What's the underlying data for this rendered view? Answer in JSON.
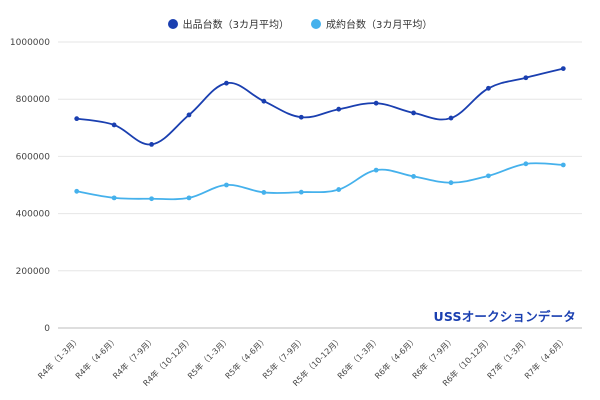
{
  "chart_data": {
    "type": "line",
    "categories": [
      "R4年（1-3月）",
      "R4年（4-6月）",
      "R4年（7-9月）",
      "R4年（10-12月）",
      "R5年（1-3月）",
      "R5年（4-6月）",
      "R5年（7-9月）",
      "R5年（10-12月）",
      "R6年（1-3月）",
      "R6年（4-6月）",
      "R6年（7-9月）",
      "R6年（10-12月）",
      "R7年（1-3月）",
      "R7年（4-6月）"
    ],
    "series": [
      {
        "name": "出品台数（3カ月平均）",
        "color": "#1a3fb0",
        "values": [
          732000,
          710000,
          642000,
          745000,
          856000,
          793000,
          737000,
          765000,
          786000,
          752000,
          734000,
          838000,
          875000,
          907000
        ]
      },
      {
        "name": "成約台数（3カ月平均）",
        "color": "#45b1ec",
        "values": [
          478000,
          455000,
          452000,
          455000,
          500000,
          474000,
          475000,
          484000,
          552000,
          530000,
          508000,
          532000,
          574000,
          570000
        ]
      }
    ],
    "yticks": [
      "0",
      "200000",
      "400000",
      "600000",
      "800000",
      "1000000"
    ],
    "ylim": [
      0,
      1000000
    ],
    "grid": true,
    "legend_position": "top-center",
    "annotation": "USSオークションデータ"
  }
}
